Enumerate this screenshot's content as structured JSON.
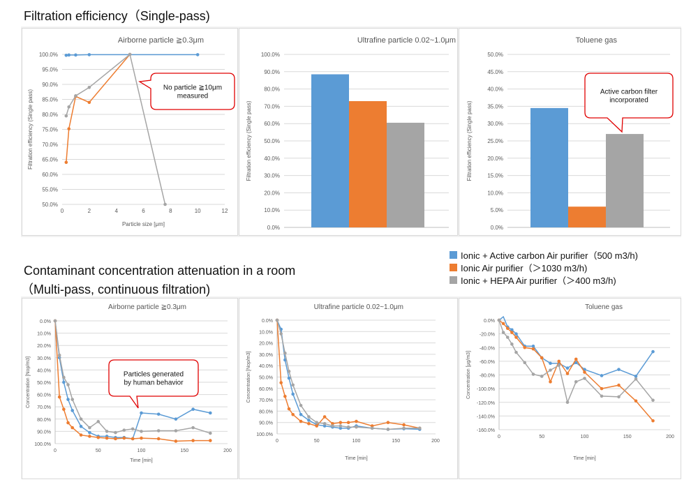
{
  "section1_title": "Filtration efficiency（Single-pass)",
  "section2_title_line1": "Contaminant concentration attenuation in a room",
  "section2_title_line2": "（Multi-pass, continuous filtration)",
  "colors": {
    "blue": "#5b9bd5",
    "orange": "#ed7d31",
    "gray": "#a5a5a5"
  },
  "legend": [
    {
      "label": "Ionic + Active carbon Air purifier（500 m3/h)",
      "color": "#5b9bd5"
    },
    {
      "label": "Ionic Air purifier（＞1030 m3/h)",
      "color": "#ed7d31"
    },
    {
      "label": "Ionic + HEPA Air purifier（＞400 m3/h)",
      "color": "#a5a5a5"
    }
  ],
  "chart_data": [
    {
      "id": "c1",
      "type": "scatter",
      "title": "Airborne particle ≧0.3μm",
      "xlabel": "Particle size [μm]",
      "ylabel": "Filtration efficiency (Single pass)",
      "xlim": [
        0,
        12
      ],
      "xticks": [
        0,
        2,
        4,
        6,
        8,
        10,
        12
      ],
      "ylim": [
        50,
        100
      ],
      "yticks": [
        50,
        55,
        60,
        65,
        70,
        75,
        80,
        85,
        90,
        95,
        100
      ],
      "ydecimals": 1,
      "series": [
        {
          "color": "blue",
          "x": [
            0.3,
            0.5,
            1,
            2,
            10
          ],
          "y": [
            99.7,
            99.8,
            99.8,
            99.9,
            99.9
          ]
        },
        {
          "color": "orange",
          "x": [
            0.3,
            0.5,
            1,
            2,
            5
          ],
          "y": [
            64,
            75.2,
            86,
            84,
            100
          ]
        },
        {
          "color": "gray",
          "x": [
            0.3,
            0.5,
            1,
            2,
            5,
            7.6
          ],
          "y": [
            79.5,
            82.5,
            86.2,
            89,
            100,
            50
          ]
        }
      ],
      "callout": {
        "text": [
          "No particle ≧10μm",
          "measured"
        ]
      }
    },
    {
      "id": "c2",
      "type": "bar",
      "title": "Ultrafine particle 0.02~1.0μm",
      "ylabel": "Filtration efficiency (Single pass)",
      "ylim": [
        0,
        100
      ],
      "yticks": [
        0,
        10,
        20,
        30,
        40,
        50,
        60,
        70,
        80,
        90,
        100
      ],
      "values": [
        88.5,
        73,
        60.5
      ]
    },
    {
      "id": "c3",
      "type": "bar",
      "title": "Toluene gas",
      "ylabel": "Filtration efficiency (Single pass)",
      "ylim": [
        0,
        50
      ],
      "yticks": [
        0,
        5,
        10,
        15,
        20,
        25,
        30,
        35,
        40,
        45,
        50
      ],
      "values": [
        34.5,
        6,
        27
      ],
      "callout": {
        "text": [
          "Active carbon filter",
          "incorporated"
        ]
      }
    },
    {
      "id": "c4",
      "type": "line",
      "title": "Airborne particle ≧0.3μm",
      "xlabel": "Time [min]",
      "ylabel": "Concentration [Nop/m3]",
      "xlim": [
        0,
        200
      ],
      "xticks": [
        0,
        50,
        100,
        150,
        200
      ],
      "ylim": [
        0,
        100
      ],
      "yticks": [
        0,
        10,
        20,
        30,
        40,
        50,
        60,
        70,
        80,
        90,
        100
      ],
      "ydecimals": 1,
      "reversed": true,
      "series": [
        {
          "color": "blue",
          "x": [
            0,
            5,
            10,
            15,
            20,
            30,
            40,
            50,
            60,
            70,
            80,
            90,
            100,
            120,
            140,
            160,
            180
          ],
          "y": [
            0,
            30,
            50,
            64,
            73,
            86,
            91,
            94,
            94,
            95,
            95,
            96,
            75,
            76,
            80,
            72,
            75
          ]
        },
        {
          "color": "orange",
          "x": [
            0,
            5,
            10,
            15,
            20,
            30,
            40,
            50,
            60,
            70,
            80,
            90,
            100,
            120,
            140,
            160,
            180
          ],
          "y": [
            0,
            62,
            72,
            83,
            87,
            93,
            94,
            95,
            95.5,
            96,
            95.5,
            96,
            95.5,
            96,
            98,
            97.5,
            97.5
          ]
        },
        {
          "color": "gray",
          "x": [
            0,
            5,
            10,
            15,
            20,
            30,
            40,
            50,
            60,
            70,
            80,
            90,
            100,
            120,
            140,
            160,
            180
          ],
          "y": [
            0,
            28,
            46,
            52,
            64,
            80,
            87,
            82,
            90,
            91,
            89,
            88,
            90,
            89.5,
            89.5,
            87,
            91.5
          ]
        }
      ],
      "callout": {
        "text": [
          "Particles generated",
          "by human behavior"
        ]
      }
    },
    {
      "id": "c5",
      "type": "line",
      "title": "Ultrafine particle 0.02~1.0μm",
      "xlabel": "Time [min]",
      "ylabel": "Concentration [Nop/m3]",
      "xlim": [
        0,
        200
      ],
      "xticks": [
        0,
        50,
        100,
        150,
        200
      ],
      "ylim": [
        0,
        100
      ],
      "yticks": [
        0,
        10,
        20,
        30,
        40,
        50,
        60,
        70,
        80,
        90,
        100
      ],
      "ydecimals": 1,
      "reversed": true,
      "series": [
        {
          "color": "blue",
          "x": [
            0,
            5,
            10,
            15,
            20,
            30,
            40,
            50,
            60,
            70,
            80,
            90,
            100,
            120,
            140,
            160,
            180
          ],
          "y": [
            0,
            8,
            35,
            51,
            65,
            83,
            88,
            92,
            93,
            94,
            95,
            95,
            93,
            95,
            96,
            95.5,
            96
          ]
        },
        {
          "color": "orange",
          "x": [
            0,
            5,
            10,
            15,
            20,
            30,
            40,
            50,
            60,
            70,
            80,
            90,
            100,
            120,
            140,
            160,
            180
          ],
          "y": [
            0,
            55,
            67,
            78,
            83,
            89,
            91,
            93,
            85,
            91,
            90,
            90,
            89,
            93,
            90,
            92,
            95
          ]
        },
        {
          "color": "gray",
          "x": [
            0,
            5,
            10,
            15,
            20,
            30,
            40,
            50,
            60,
            70,
            80,
            90,
            100,
            120,
            140,
            160,
            180
          ],
          "y": [
            0,
            12,
            29,
            45,
            57,
            75,
            85,
            90,
            91,
            93,
            93,
            94,
            94,
            95,
            96,
            95,
            95
          ]
        }
      ]
    },
    {
      "id": "c6",
      "type": "line",
      "title": "Toluene gas",
      "xlabel": "Time [min]",
      "ylabel": "Concentration [μg/m3]",
      "xlim": [
        0,
        200
      ],
      "xticks": [
        0,
        50,
        100,
        150,
        200
      ],
      "ylim": [
        0,
        -160
      ],
      "yticks": [
        0,
        -20,
        -40,
        -60,
        -80,
        -100,
        -120,
        -140,
        -160
      ],
      "ydecimals": 1,
      "reversed": true,
      "series": [
        {
          "color": "blue",
          "x": [
            0,
            5,
            10,
            15,
            20,
            30,
            40,
            50,
            60,
            70,
            80,
            90,
            100,
            120,
            140,
            160,
            180
          ],
          "y": [
            0,
            5,
            -10,
            -14,
            -20,
            -38,
            -38,
            -55,
            -63,
            -63,
            -70,
            -62,
            -72,
            -81,
            -72,
            -82,
            -46
          ]
        },
        {
          "color": "orange",
          "x": [
            0,
            5,
            10,
            15,
            20,
            30,
            40,
            50,
            60,
            70,
            80,
            90,
            100,
            120,
            140,
            160,
            180
          ],
          "y": [
            0,
            -5,
            -12,
            -18,
            -25,
            -40,
            -42,
            -55,
            -90,
            -60,
            -78,
            -57,
            -76,
            -100,
            -95,
            -118,
            -147
          ]
        },
        {
          "color": "gray",
          "x": [
            0,
            5,
            10,
            15,
            20,
            30,
            40,
            50,
            60,
            70,
            80,
            90,
            100,
            120,
            140,
            160,
            180
          ],
          "y": [
            0,
            -18,
            -25,
            -35,
            -47,
            -62,
            -79,
            -82,
            -73,
            -66,
            -120,
            -90,
            -85,
            -111,
            -112,
            -86,
            -117
          ]
        }
      ]
    }
  ]
}
